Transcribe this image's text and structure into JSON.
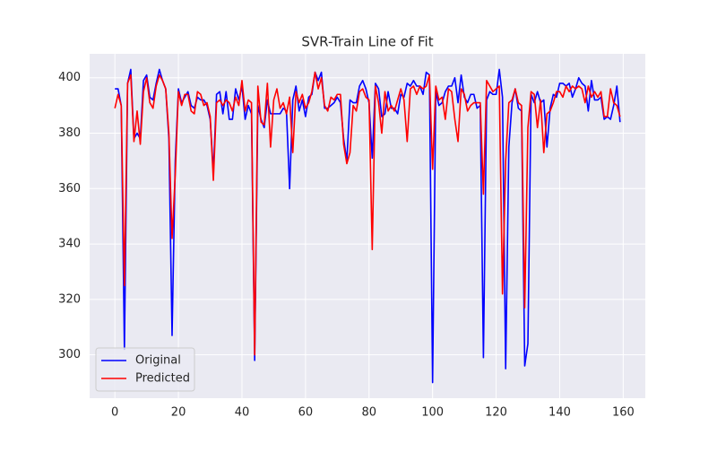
{
  "chart_data": {
    "type": "line",
    "title": "SVR-Train Line of Fit",
    "x": [
      0,
      1,
      2,
      3,
      4,
      5,
      6,
      7,
      8,
      9,
      10,
      11,
      12,
      13,
      14,
      15,
      16,
      17,
      18,
      19,
      20,
      21,
      22,
      23,
      24,
      25,
      26,
      27,
      28,
      29,
      30,
      31,
      32,
      33,
      34,
      35,
      36,
      37,
      38,
      39,
      40,
      41,
      42,
      43,
      44,
      45,
      46,
      47,
      48,
      49,
      50,
      51,
      52,
      53,
      54,
      55,
      56,
      57,
      58,
      59,
      60,
      61,
      62,
      63,
      64,
      65,
      66,
      67,
      68,
      69,
      70,
      71,
      72,
      73,
      74,
      75,
      76,
      77,
      78,
      79,
      80,
      81,
      82,
      83,
      84,
      85,
      86,
      87,
      88,
      89,
      90,
      91,
      92,
      93,
      94,
      95,
      96,
      97,
      98,
      99,
      100,
      101,
      102,
      103,
      104,
      105,
      106,
      107,
      108,
      109,
      110,
      111,
      112,
      113,
      114,
      115,
      116,
      117,
      118,
      119,
      120,
      121,
      122,
      123,
      124,
      125,
      126,
      127,
      128,
      129,
      130,
      131,
      132,
      133,
      134,
      135,
      136,
      137,
      138,
      139,
      140,
      141,
      142,
      143,
      144,
      145,
      146,
      147,
      148,
      149,
      150,
      151,
      152,
      153,
      154,
      155,
      156,
      157,
      158,
      159
    ],
    "series": [
      {
        "name": "Original",
        "color": "#0000ff",
        "values": [
          396,
          396,
          390,
          302,
          398,
          403,
          378,
          380,
          378,
          399,
          401,
          393,
          392,
          398,
          403,
          399,
          396,
          378,
          307,
          370,
          396,
          391,
          393,
          395,
          390,
          389,
          393,
          392,
          392,
          390,
          385,
          366,
          394,
          395,
          387,
          395,
          385,
          385,
          396,
          392,
          397,
          385,
          390,
          387,
          298,
          390,
          385,
          382,
          392,
          387,
          387,
          387,
          387,
          389,
          388,
          360,
          392,
          397,
          388,
          392,
          386,
          393,
          394,
          402,
          399,
          402,
          389,
          389,
          390,
          391,
          393,
          391,
          378,
          370,
          392,
          391,
          391,
          397,
          399,
          396,
          391,
          371,
          398,
          396,
          386,
          387,
          395,
          389,
          389,
          387,
          394,
          393,
          398,
          397,
          399,
          397,
          397,
          394,
          402,
          401,
          290,
          395,
          390,
          391,
          395,
          397,
          397,
          400,
          391,
          401,
          393,
          391,
          394,
          394,
          389,
          390,
          299,
          392,
          395,
          394,
          394,
          403,
          393,
          295,
          375,
          391,
          396,
          389,
          388,
          296,
          304,
          394,
          391,
          395,
          391,
          392,
          375,
          389,
          394,
          393,
          398,
          398,
          397,
          398,
          393,
          396,
          400,
          398,
          397,
          388,
          399,
          392,
          392,
          393,
          385,
          386,
          385,
          390,
          397,
          384
        ]
      },
      {
        "name": "Predicted",
        "color": "#ff0000",
        "values": [
          389,
          394,
          390,
          325,
          398,
          401,
          377,
          388,
          376,
          395,
          400,
          391,
          389,
          397,
          401,
          399,
          396,
          380,
          342,
          365,
          395,
          390,
          394,
          394,
          388,
          387,
          395,
          394,
          390,
          391,
          386,
          363,
          391,
          392,
          390,
          392,
          391,
          388,
          393,
          390,
          399,
          388,
          392,
          391,
          300,
          397,
          384,
          383,
          398,
          375,
          392,
          396,
          389,
          391,
          387,
          393,
          373,
          395,
          391,
          394,
          389,
          391,
          395,
          402,
          396,
          400,
          390,
          388,
          393,
          392,
          394,
          394,
          376,
          369,
          373,
          390,
          388,
          395,
          396,
          393,
          392,
          338,
          397,
          391,
          380,
          395,
          388,
          390,
          388,
          392,
          396,
          392,
          377,
          396,
          397,
          394,
          397,
          396,
          397,
          401,
          367,
          397,
          392,
          393,
          385,
          396,
          395,
          385,
          377,
          396,
          394,
          388,
          390,
          391,
          391,
          391,
          358,
          399,
          397,
          395,
          396,
          397,
          322,
          370,
          391,
          392,
          396,
          391,
          390,
          317,
          382,
          395,
          394,
          382,
          392,
          373,
          387,
          388,
          391,
          395,
          395,
          393,
          397,
          395,
          397,
          396,
          397,
          396,
          391,
          397,
          393,
          395,
          393,
          395,
          386,
          386,
          396,
          391,
          390,
          386
        ]
      }
    ],
    "xlim": [
      -7.95,
      166.95
    ],
    "ylim": [
      284.35,
      408.65
    ],
    "xticks": [
      0,
      20,
      40,
      60,
      80,
      100,
      120,
      140,
      160
    ],
    "yticks": [
      300,
      320,
      340,
      360,
      380,
      400
    ],
    "grid": true,
    "legend": "lower left"
  }
}
